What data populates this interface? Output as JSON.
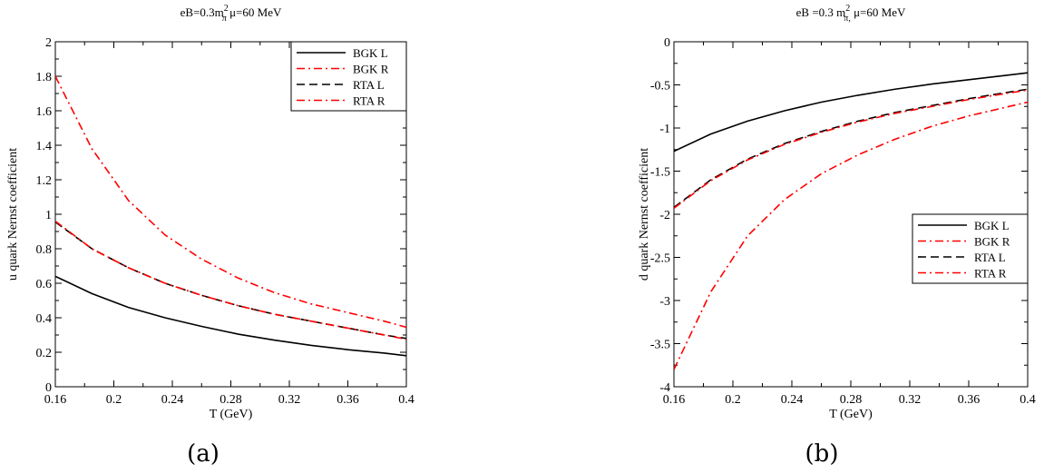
{
  "chart_data": [
    {
      "type": "line",
      "title": "eB=0.3m²π, μ=60 MeV",
      "title_parts": {
        "pre": "eB=0.3m",
        "sup": "2",
        "sub": "π",
        "post": "  μ=60  MeV"
      },
      "xlabel": "T (GeV)",
      "ylabel": "u quark Nernst coefficient",
      "panel_label": "(a)",
      "xlim": [
        0.16,
        0.4
      ],
      "ylim": [
        0,
        2
      ],
      "xticks": [
        0.16,
        0.2,
        0.24,
        0.28,
        0.32,
        0.36,
        0.4
      ],
      "xtick_labels": [
        "0.16",
        "0.2",
        "0.24",
        "0.28",
        "0.32",
        "0.36",
        "0.4"
      ],
      "yticks": [
        0,
        0.2,
        0.4,
        0.6,
        0.8,
        1,
        1.2,
        1.4,
        1.6,
        1.8,
        2
      ],
      "ytick_labels": [
        "0",
        "0.2",
        "0.4",
        "0.6",
        "0.8",
        "1",
        "1.2",
        "1.4",
        "1.6",
        "1.8",
        "2"
      ],
      "legend_position": "top-right",
      "x": [
        0.16,
        0.185,
        0.21,
        0.235,
        0.26,
        0.285,
        0.31,
        0.335,
        0.36,
        0.385,
        0.4
      ],
      "series": [
        {
          "name": "BGK L",
          "color": "#000000",
          "dash": "solid",
          "values": [
            0.64,
            0.54,
            0.46,
            0.4,
            0.35,
            0.305,
            0.27,
            0.24,
            0.215,
            0.195,
            0.18
          ]
        },
        {
          "name": "BGK R",
          "color": "#ff0000",
          "dash": "dashdot",
          "values": [
            1.8,
            1.38,
            1.08,
            0.88,
            0.74,
            0.63,
            0.545,
            0.48,
            0.43,
            0.38,
            0.345
          ]
        },
        {
          "name": "RTA L",
          "color": "#000000",
          "dash": "dash",
          "values": [
            0.955,
            0.8,
            0.69,
            0.6,
            0.53,
            0.47,
            0.42,
            0.38,
            0.34,
            0.3,
            0.28
          ]
        },
        {
          "name": "RTA R",
          "color": "#ff0000",
          "dash": "dashdot",
          "values": [
            0.96,
            0.8,
            0.69,
            0.6,
            0.53,
            0.47,
            0.42,
            0.38,
            0.34,
            0.3,
            0.275
          ]
        }
      ]
    },
    {
      "type": "line",
      "title": "eB =0.3 m²π, μ=60 MeV",
      "title_parts": {
        "pre": "eB =0.3 m",
        "sup": "2",
        "sub": "π,",
        "post": "  μ=60 MeV"
      },
      "xlabel": "T (GeV)",
      "ylabel": "d quark Nernst coefficient",
      "panel_label": "(b)",
      "xlim": [
        0.16,
        0.4
      ],
      "ylim": [
        -4,
        0
      ],
      "xticks": [
        0.16,
        0.2,
        0.24,
        0.28,
        0.32,
        0.36,
        0.4
      ],
      "xtick_labels": [
        "0.16",
        "0.2",
        "0.24",
        "0.28",
        "0.32",
        "0.36",
        "0.4"
      ],
      "yticks": [
        -4,
        -3.5,
        -3,
        -2.5,
        -2,
        -1.5,
        -1,
        -0.5,
        0
      ],
      "ytick_labels": [
        "-4",
        "-3.5",
        "-3",
        "-2.5",
        "-2",
        "-1.5",
        "-1",
        "-0.5",
        "0"
      ],
      "legend_position": "middle-right",
      "x": [
        0.16,
        0.185,
        0.21,
        0.235,
        0.26,
        0.285,
        0.31,
        0.335,
        0.36,
        0.385,
        0.4
      ],
      "series": [
        {
          "name": "BGK L",
          "color": "#000000",
          "dash": "solid",
          "values": [
            -1.27,
            -1.07,
            -0.92,
            -0.8,
            -0.7,
            -0.62,
            -0.55,
            -0.49,
            -0.44,
            -0.39,
            -0.36
          ]
        },
        {
          "name": "BGK R",
          "color": "#ff0000",
          "dash": "dashdot",
          "values": [
            -3.8,
            -2.9,
            -2.25,
            -1.83,
            -1.53,
            -1.31,
            -1.13,
            -0.98,
            -0.86,
            -0.76,
            -0.7
          ]
        },
        {
          "name": "RTA L",
          "color": "#000000",
          "dash": "dash",
          "values": [
            -1.92,
            -1.6,
            -1.36,
            -1.18,
            -1.04,
            -0.92,
            -0.82,
            -0.74,
            -0.66,
            -0.59,
            -0.55
          ]
        },
        {
          "name": "RTA R",
          "color": "#ff0000",
          "dash": "dashdot",
          "values": [
            -1.93,
            -1.61,
            -1.37,
            -1.19,
            -1.05,
            -0.93,
            -0.83,
            -0.75,
            -0.67,
            -0.6,
            -0.56
          ]
        }
      ]
    }
  ]
}
